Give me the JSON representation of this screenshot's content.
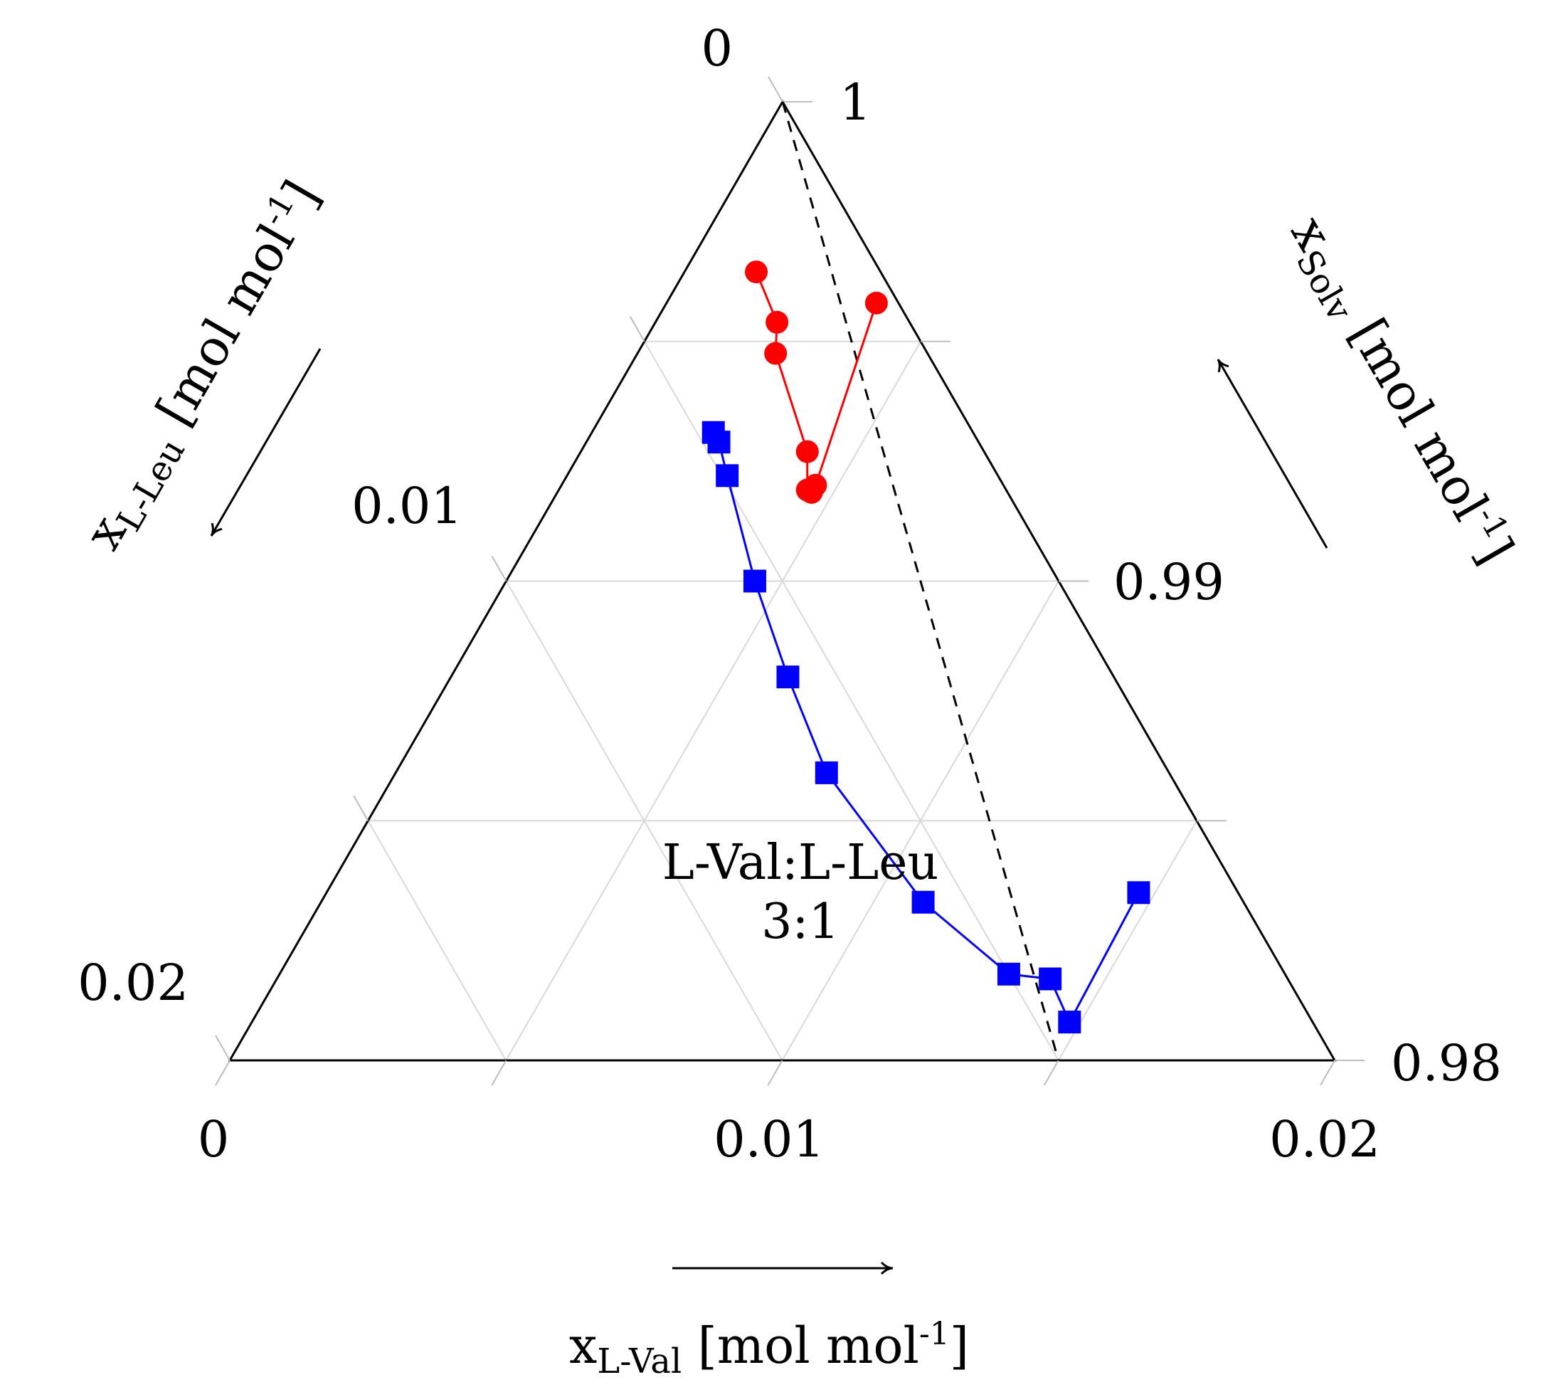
{
  "chart_data": {
    "type": "scatter",
    "subtype": "ternary",
    "axes": {
      "x_l_val": {
        "label_main": "x",
        "label_sub": "L-Val",
        "label_unit_pre": " [mol mol",
        "label_sup": "-1",
        "label_unit_post": "]",
        "ticks": [
          "0",
          "0.01",
          "0.02"
        ],
        "range": [
          0,
          0.02
        ]
      },
      "x_l_leu": {
        "label_main": "x",
        "label_sub": "L-Leu",
        "label_unit_pre": " [mol mol",
        "label_sup": "-1",
        "label_unit_post": "]",
        "ticks": [
          "0",
          "0.01",
          "0.02"
        ],
        "range": [
          0,
          0.02
        ]
      },
      "x_solv": {
        "label_main": "x",
        "label_sub": "Solv",
        "label_unit_pre": " [mol mol",
        "label_sup": "-1",
        "label_unit_post": "]",
        "ticks": [
          "1",
          "0.99",
          "0.98"
        ],
        "range": [
          0.98,
          1
        ]
      }
    },
    "grid": true,
    "annotation": {
      "line1": "L-Val:L-Leu",
      "line2": "3:1"
    },
    "reference_line": {
      "style": "dashed",
      "from": {
        "x_l_val": 0,
        "x_l_leu": 0
      },
      "to": {
        "x_l_val": 0.015,
        "x_l_leu": 0.005
      }
    },
    "series": [
      {
        "marker": "circle",
        "color": "#ff0000",
        "points": [
          {
            "x_l_val": 0.0013,
            "x_l_leu": 0.00225
          },
          {
            "x_l_val": 0.0022,
            "x_l_leu": 0.0024
          },
          {
            "x_l_val": 0.0025,
            "x_l_leu": 0.00275
          },
          {
            "x_l_val": 0.0041,
            "x_l_leu": 0.0032
          },
          {
            "x_l_val": 0.0045,
            "x_l_leu": 0.0036
          },
          {
            "x_l_val": 0.0046,
            "x_l_leu": 0.00355
          },
          {
            "x_l_val": 0.0046,
            "x_l_leu": 0.0034
          },
          {
            "x_l_val": 0.0038,
            "x_l_leu": 0.0004
          }
        ]
      },
      {
        "marker": "square",
        "color": "#0000ff",
        "points": [
          {
            "x_l_val": 0.0022,
            "x_l_leu": 0.0047
          },
          {
            "x_l_val": 0.0024,
            "x_l_leu": 0.0047
          },
          {
            "x_l_val": 0.0029,
            "x_l_leu": 0.0049
          },
          {
            "x_l_val": 0.0045,
            "x_l_leu": 0.0055
          },
          {
            "x_l_val": 0.0061,
            "x_l_leu": 0.0059
          },
          {
            "x_l_val": 0.0078,
            "x_l_leu": 0.0062
          },
          {
            "x_l_val": 0.0109,
            "x_l_leu": 0.0058
          },
          {
            "x_l_val": 0.0132,
            "x_l_leu": 0.005
          },
          {
            "x_l_val": 0.014,
            "x_l_leu": 0.0043
          },
          {
            "x_l_val": 0.0148,
            "x_l_leu": 0.0044
          },
          {
            "x_l_val": 0.0147,
            "x_l_leu": 0.0018
          }
        ]
      }
    ]
  }
}
